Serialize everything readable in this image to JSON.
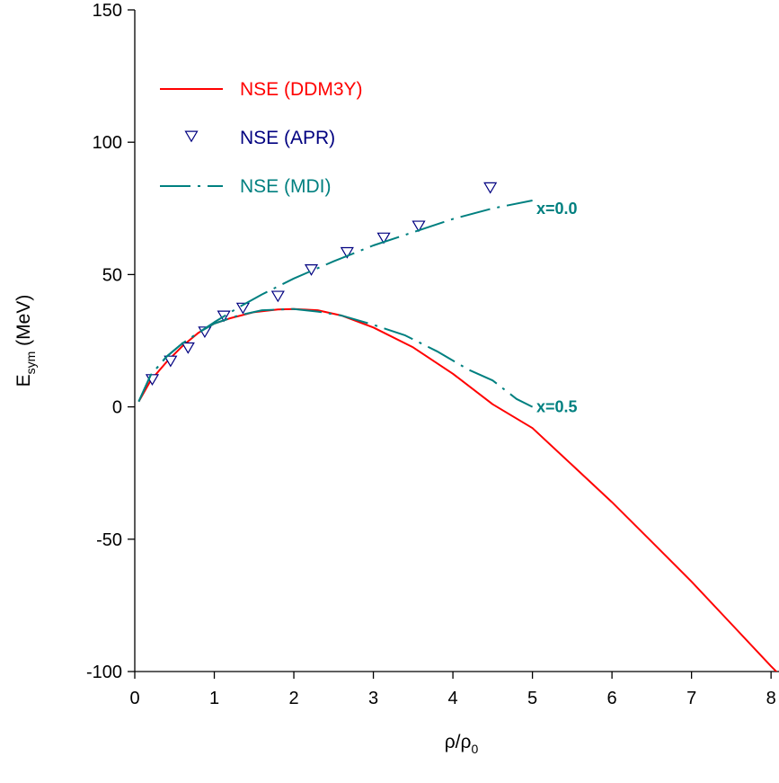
{
  "chart_data": {
    "type": "line",
    "title": "",
    "xlabel": {
      "base": "ρ/ρ",
      "sub": "0"
    },
    "ylabel": {
      "base": "E",
      "sub": "sym",
      "suffix": " (MeV)"
    },
    "xlim": [
      0,
      8.1
    ],
    "ylim": [
      -100,
      150
    ],
    "xticks": [
      0,
      1,
      2,
      3,
      4,
      5,
      6,
      7,
      8
    ],
    "xtick_labels": [
      "0",
      "1",
      "2",
      "3",
      "4",
      "5",
      "6",
      "7",
      "8"
    ],
    "yticks": [
      -100,
      -50,
      0,
      50,
      100,
      150
    ],
    "ytick_labels": [
      "-100",
      "-50",
      "0",
      "50",
      "100",
      "150"
    ],
    "grid": false,
    "legend_position": "top-left",
    "colors": {
      "ddm3y": "#ff0000",
      "apr": "#000080",
      "mdi": "#008080"
    },
    "series": [
      {
        "name": "NSE (DDM3Y)",
        "style": "solid",
        "color": "#ff0000",
        "x": [
          0.05,
          0.2,
          0.4,
          0.6,
          0.8,
          1.0,
          1.2,
          1.5,
          1.8,
          2.0,
          2.3,
          2.6,
          3.0,
          3.5,
          4.0,
          4.5,
          5.0,
          5.5,
          6.0,
          6.5,
          7.0,
          7.5,
          8.0,
          8.1
        ],
        "y": [
          2,
          10,
          17,
          23,
          28,
          31.5,
          33.5,
          35.8,
          36.8,
          37,
          36.5,
          34.5,
          30,
          22.5,
          12.5,
          1,
          -8,
          -22,
          -36,
          -51,
          -66,
          -82,
          -98,
          -101
        ]
      },
      {
        "name": "NSE (APR)",
        "style": "markers",
        "color": "#000080",
        "x": [
          0.22,
          0.45,
          0.67,
          0.88,
          1.12,
          1.36,
          1.8,
          2.22,
          2.67,
          3.13,
          3.57,
          4.47
        ],
        "y": [
          10.5,
          17.5,
          22.5,
          28.5,
          34.5,
          37.5,
          42,
          52,
          58.5,
          64,
          68.5,
          83
        ]
      },
      {
        "name": "NSE (MDI)",
        "style": "dashdot",
        "color": "#008080",
        "x": [
          0.05,
          0.2,
          0.4,
          0.6,
          0.8,
          1.0,
          1.3,
          1.6,
          2.0,
          2.5,
          3.0,
          3.5,
          4.0,
          4.5,
          5.0
        ],
        "y": [
          2,
          12,
          19,
          24,
          28,
          32,
          37.5,
          42.5,
          48.5,
          55,
          61,
          66,
          71,
          75,
          78
        ],
        "label": "x=0.0"
      },
      {
        "name": "",
        "style": "dashdot",
        "color": "#008080",
        "x": [
          0.05,
          0.2,
          0.4,
          0.6,
          0.8,
          1.0,
          1.3,
          1.6,
          2.0,
          2.3,
          2.6,
          3.0,
          3.4,
          3.8,
          4.2,
          4.5,
          4.8,
          5.0
        ],
        "y": [
          2,
          12,
          19,
          24,
          28,
          31.5,
          34.5,
          36.5,
          37,
          36,
          34.5,
          31,
          27,
          21,
          14,
          10,
          3,
          0
        ],
        "label": "x=0.5"
      }
    ],
    "legend": [
      {
        "label": "NSE (DDM3Y)",
        "color": "#ff0000",
        "kind": "solid"
      },
      {
        "label": "NSE (APR)",
        "color": "#000080",
        "kind": "marker"
      },
      {
        "label": "NSE (MDI)",
        "color": "#008080",
        "kind": "dashdot"
      }
    ],
    "annotations": [
      {
        "text": "x=0.0",
        "x": 5.05,
        "y": 75
      },
      {
        "text": "x=0.5",
        "x": 5.05,
        "y": 0
      }
    ]
  }
}
